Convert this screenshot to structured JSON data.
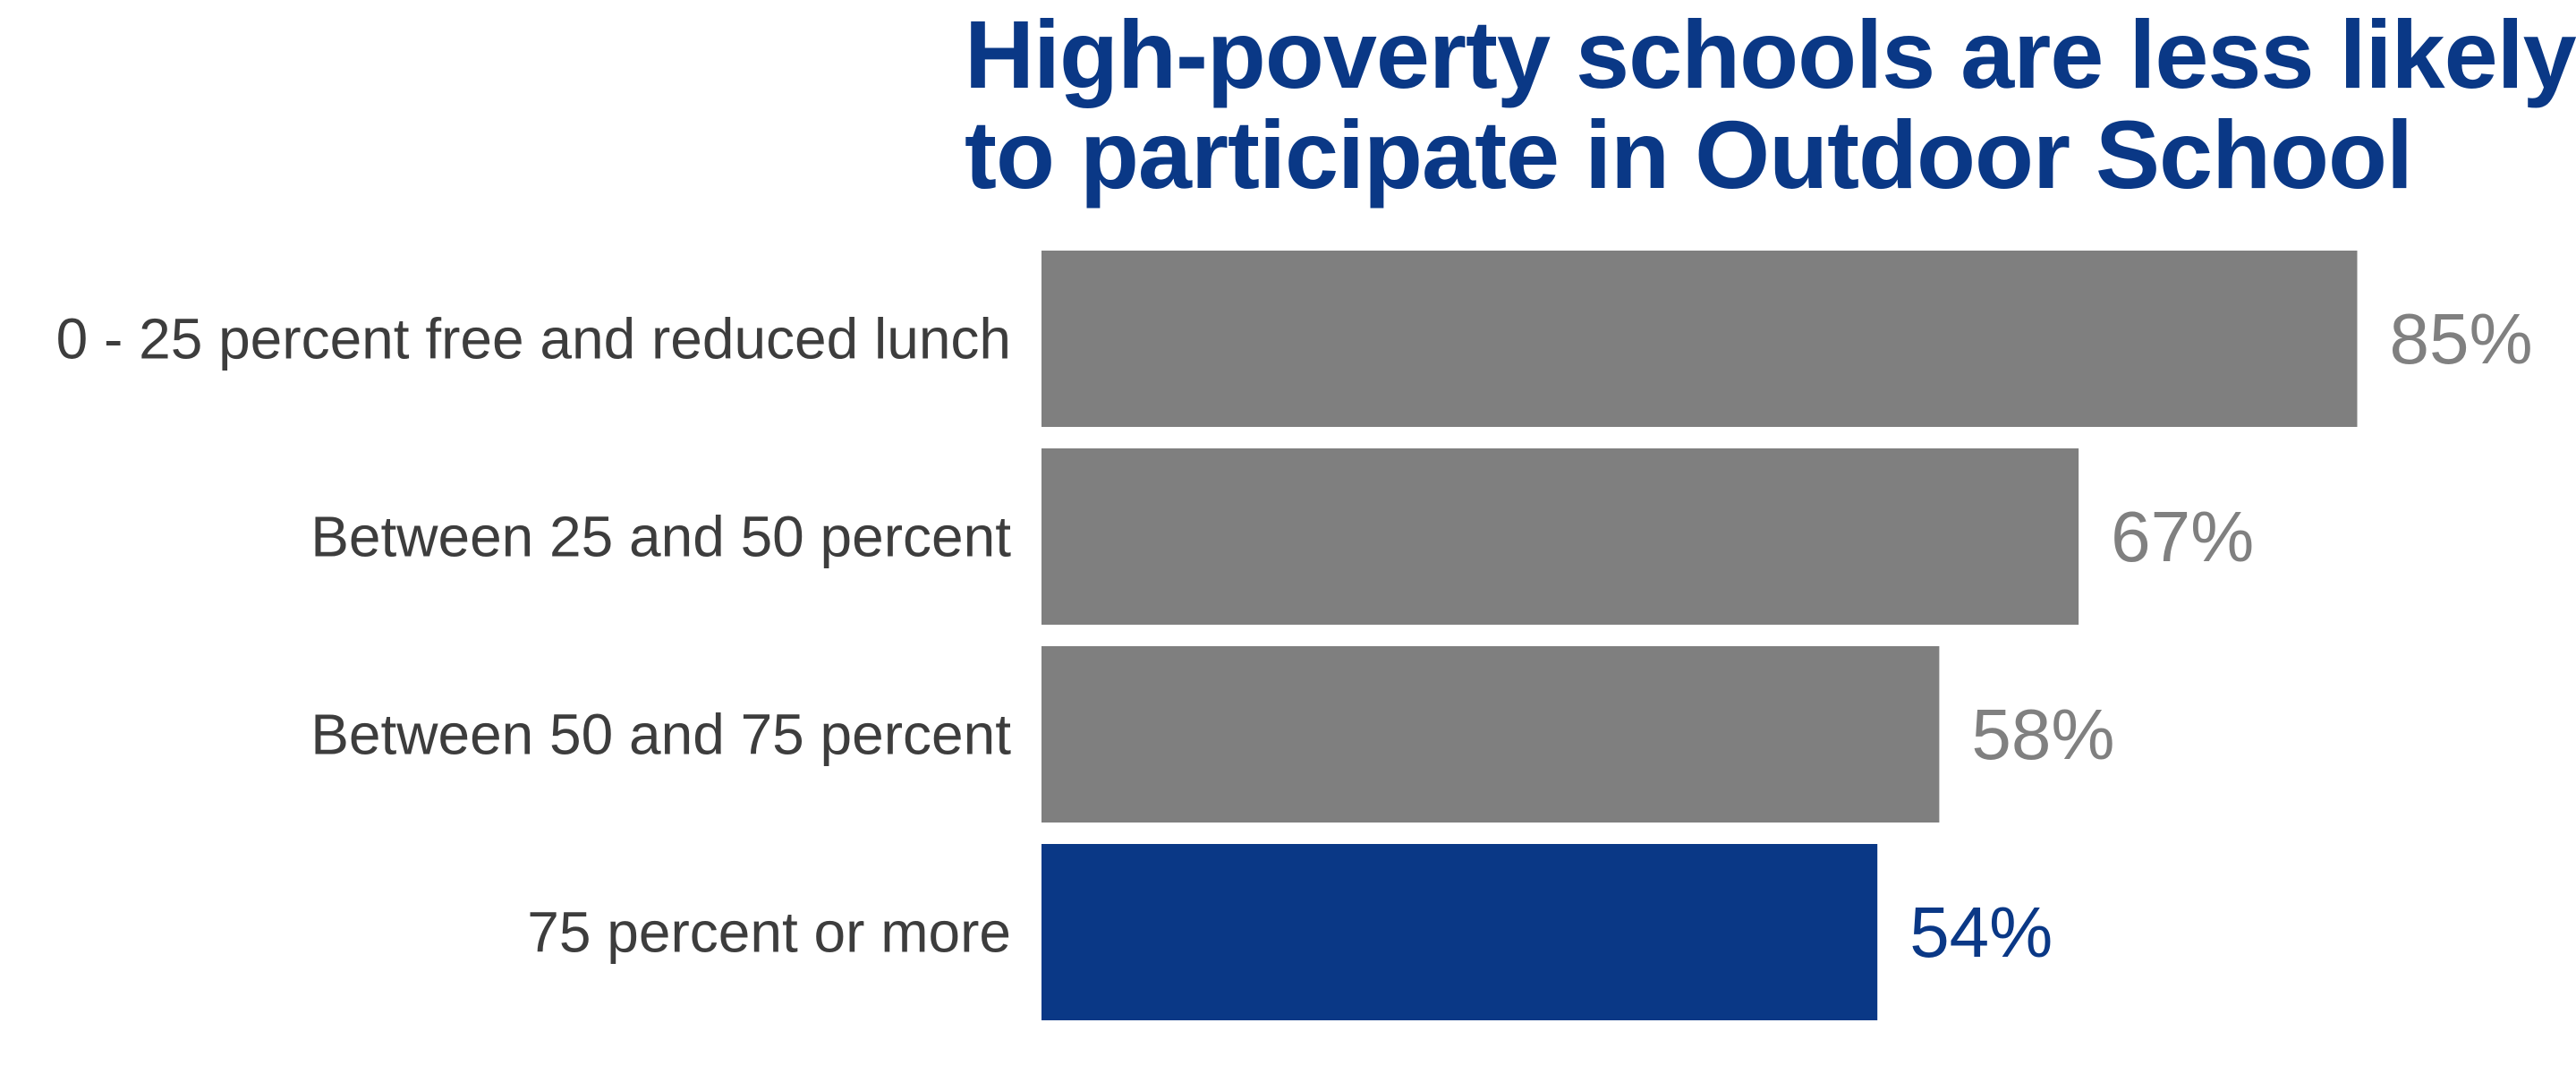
{
  "chart_data": {
    "type": "bar",
    "orientation": "horizontal",
    "title_lines": [
      "High-poverty schools are less likely",
      "to participate in Outdoor School"
    ],
    "categories": [
      "0 - 25 percent free and reduced lunch",
      "Between 25 and 50 percent",
      "Between 50 and 75 percent",
      "75 percent or more"
    ],
    "values": [
      85,
      67,
      58,
      54
    ],
    "value_labels": [
      "85%",
      "67%",
      "58%",
      "54%"
    ],
    "xlim": [
      0,
      100
    ],
    "grid": false,
    "legend": "none",
    "colors": {
      "default_bar": "#7f7f7f",
      "highlight_bar": "#0a3886",
      "default_label": "#808080",
      "highlight_label": "#0a3886",
      "category_text": "#3d3d3d",
      "title": "#0a3886"
    },
    "highlight_index": 3
  }
}
